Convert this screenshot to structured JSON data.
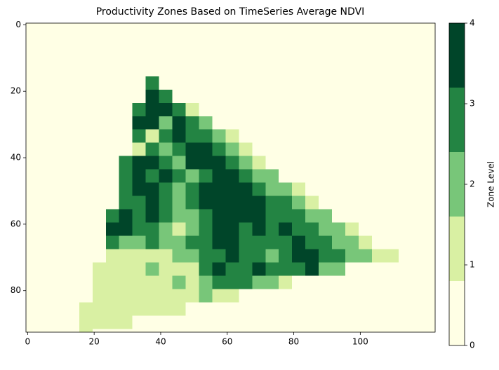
{
  "chart_data": {
    "type": "heatmap",
    "title": "Productivity Zones Based on TimeSeries Average NDVI",
    "x": [
      0,
      4,
      8,
      12,
      16,
      20,
      24,
      28,
      32,
      36,
      40,
      44,
      48,
      52,
      56,
      60,
      64,
      68,
      72,
      76,
      80,
      84,
      88,
      92,
      96,
      100,
      104,
      108,
      112,
      116,
      120
    ],
    "y": [
      0,
      4,
      8,
      12,
      16,
      20,
      24,
      28,
      32,
      36,
      40,
      44,
      48,
      52,
      56,
      60,
      64,
      68,
      72,
      76,
      80,
      84,
      88,
      92
    ],
    "z": [
      [
        0,
        0,
        0,
        0,
        0,
        0,
        0,
        0,
        0,
        0,
        0,
        0,
        0,
        0,
        0,
        0,
        0,
        0,
        0,
        0,
        0,
        0,
        0,
        0,
        0,
        0,
        0,
        0,
        0,
        0,
        0
      ],
      [
        0,
        0,
        0,
        0,
        0,
        0,
        0,
        0,
        0,
        0,
        0,
        0,
        0,
        0,
        0,
        0,
        0,
        0,
        0,
        0,
        0,
        0,
        0,
        0,
        0,
        0,
        0,
        0,
        0,
        0,
        0
      ],
      [
        0,
        0,
        0,
        0,
        0,
        0,
        0,
        0,
        0,
        0,
        0,
        0,
        0,
        0,
        0,
        0,
        0,
        0,
        0,
        0,
        0,
        0,
        0,
        0,
        0,
        0,
        0,
        0,
        0,
        0,
        0
      ],
      [
        0,
        0,
        0,
        0,
        0,
        0,
        0,
        0,
        0,
        0,
        0,
        0,
        0,
        0,
        0,
        0,
        0,
        0,
        0,
        0,
        0,
        0,
        0,
        0,
        0,
        0,
        0,
        0,
        0,
        0,
        0
      ],
      [
        0,
        0,
        0,
        0,
        0,
        0,
        0,
        0,
        0,
        3,
        0,
        0,
        0,
        0,
        0,
        0,
        0,
        0,
        0,
        0,
        0,
        0,
        0,
        0,
        0,
        0,
        0,
        0,
        0,
        0,
        0
      ],
      [
        0,
        0,
        0,
        0,
        0,
        0,
        0,
        0,
        0,
        4,
        3,
        0,
        0,
        0,
        0,
        0,
        0,
        0,
        0,
        0,
        0,
        0,
        0,
        0,
        0,
        0,
        0,
        0,
        0,
        0,
        0
      ],
      [
        0,
        0,
        0,
        0,
        0,
        0,
        0,
        0,
        3,
        4,
        4,
        3,
        1,
        0,
        0,
        0,
        0,
        0,
        0,
        0,
        0,
        0,
        0,
        0,
        0,
        0,
        0,
        0,
        0,
        0,
        0
      ],
      [
        0,
        0,
        0,
        0,
        0,
        0,
        0,
        0,
        4,
        4,
        2,
        4,
        3,
        2,
        0,
        0,
        0,
        0,
        0,
        0,
        0,
        0,
        0,
        0,
        0,
        0,
        0,
        0,
        0,
        0,
        0
      ],
      [
        0,
        0,
        0,
        0,
        0,
        0,
        0,
        0,
        3,
        1,
        3,
        4,
        3,
        3,
        2,
        1,
        0,
        0,
        0,
        0,
        0,
        0,
        0,
        0,
        0,
        0,
        0,
        0,
        0,
        0,
        0
      ],
      [
        0,
        0,
        0,
        0,
        0,
        0,
        0,
        0,
        1,
        3,
        2,
        3,
        4,
        4,
        3,
        2,
        1,
        0,
        0,
        0,
        0,
        0,
        0,
        0,
        0,
        0,
        0,
        0,
        0,
        0,
        0
      ],
      [
        0,
        0,
        0,
        0,
        0,
        0,
        0,
        3,
        4,
        4,
        3,
        2,
        4,
        4,
        4,
        3,
        2,
        1,
        0,
        0,
        0,
        0,
        0,
        0,
        0,
        0,
        0,
        0,
        0,
        0,
        0
      ],
      [
        0,
        0,
        0,
        0,
        0,
        0,
        0,
        3,
        4,
        3,
        4,
        3,
        2,
        3,
        4,
        4,
        3,
        2,
        2,
        0,
        0,
        0,
        0,
        0,
        0,
        0,
        0,
        0,
        0,
        0,
        0
      ],
      [
        0,
        0,
        0,
        0,
        0,
        0,
        0,
        3,
        4,
        4,
        3,
        2,
        3,
        4,
        4,
        4,
        4,
        3,
        2,
        2,
        1,
        0,
        0,
        0,
        0,
        0,
        0,
        0,
        0,
        0,
        0
      ],
      [
        0,
        0,
        0,
        0,
        0,
        0,
        0,
        3,
        3,
        4,
        3,
        2,
        3,
        4,
        4,
        4,
        4,
        4,
        3,
        3,
        2,
        1,
        0,
        0,
        0,
        0,
        0,
        0,
        0,
        0,
        0
      ],
      [
        0,
        0,
        0,
        0,
        0,
        0,
        3,
        4,
        3,
        4,
        3,
        2,
        2,
        3,
        4,
        4,
        4,
        4,
        3,
        3,
        3,
        2,
        2,
        0,
        0,
        0,
        0,
        0,
        0,
        0,
        0
      ],
      [
        0,
        0,
        0,
        0,
        0,
        0,
        4,
        4,
        3,
        3,
        2,
        1,
        2,
        3,
        4,
        4,
        3,
        4,
        3,
        4,
        3,
        3,
        2,
        2,
        1,
        0,
        0,
        0,
        0,
        0,
        0
      ],
      [
        0,
        0,
        0,
        0,
        0,
        0,
        3,
        2,
        2,
        3,
        2,
        2,
        3,
        3,
        4,
        4,
        3,
        3,
        3,
        3,
        4,
        3,
        3,
        2,
        2,
        1,
        0,
        0,
        0,
        0,
        0
      ],
      [
        0,
        0,
        0,
        0,
        0,
        0,
        1,
        1,
        1,
        1,
        1,
        2,
        2,
        3,
        3,
        4,
        3,
        3,
        2,
        3,
        4,
        4,
        3,
        3,
        2,
        2,
        1,
        1,
        0,
        0,
        0
      ],
      [
        0,
        0,
        0,
        0,
        0,
        1,
        1,
        1,
        1,
        2,
        1,
        1,
        1,
        3,
        4,
        3,
        3,
        4,
        3,
        3,
        3,
        4,
        2,
        2,
        0,
        0,
        0,
        0,
        0,
        0,
        0
      ],
      [
        0,
        0,
        0,
        0,
        0,
        1,
        1,
        1,
        1,
        1,
        1,
        2,
        1,
        2,
        3,
        3,
        3,
        2,
        2,
        1,
        0,
        0,
        0,
        0,
        0,
        0,
        0,
        0,
        0,
        0,
        0
      ],
      [
        0,
        0,
        0,
        0,
        0,
        1,
        1,
        1,
        1,
        1,
        1,
        1,
        1,
        2,
        1,
        1,
        0,
        0,
        0,
        0,
        0,
        0,
        0,
        0,
        0,
        0,
        0,
        0,
        0,
        0,
        0
      ],
      [
        0,
        0,
        0,
        0,
        1,
        1,
        1,
        1,
        1,
        1,
        1,
        1,
        0,
        0,
        0,
        0,
        0,
        0,
        0,
        0,
        0,
        0,
        0,
        0,
        0,
        0,
        0,
        0,
        0,
        0,
        0
      ],
      [
        0,
        0,
        0,
        0,
        1,
        1,
        1,
        1,
        0,
        0,
        0,
        0,
        0,
        0,
        0,
        0,
        0,
        0,
        0,
        0,
        0,
        0,
        0,
        0,
        0,
        0,
        0,
        0,
        0,
        0,
        0
      ],
      [
        0,
        0,
        0,
        0,
        1,
        0,
        0,
        0,
        0,
        0,
        0,
        0,
        0,
        0,
        0,
        0,
        0,
        0,
        0,
        0,
        0,
        0,
        0,
        0,
        0,
        0,
        0,
        0,
        0,
        0,
        0
      ]
    ],
    "xlim": [
      -0.5,
      122.5
    ],
    "ylim": [
      92.5,
      -0.5
    ],
    "xticks": [
      0,
      20,
      40,
      60,
      80,
      100
    ],
    "yticks": [
      0,
      20,
      40,
      60,
      80
    ],
    "colorbar": {
      "label": "Zone Level",
      "boundaries": [
        0,
        0.8,
        1.6,
        2.4,
        3.2,
        4
      ],
      "colors": [
        "#ffffe5",
        "#d9f0a3",
        "#78c679",
        "#238443",
        "#004529"
      ],
      "ticks": [
        0,
        1,
        2,
        3,
        4
      ]
    }
  }
}
